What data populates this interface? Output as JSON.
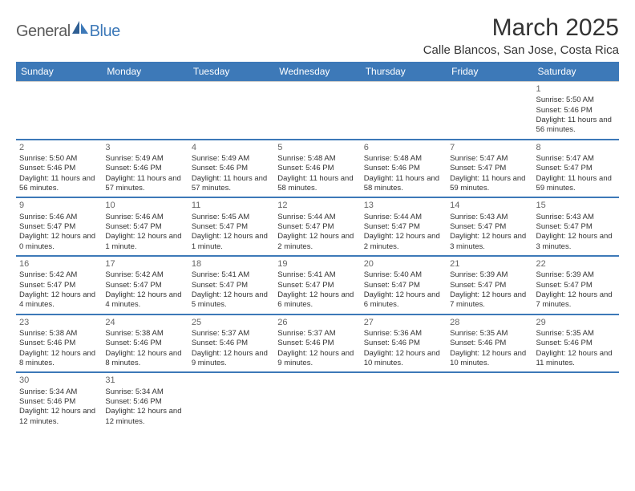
{
  "brand": {
    "part1": "General",
    "part2": "Blue"
  },
  "title": "March 2025",
  "location": "Calle Blancos, San Jose, Costa Rica",
  "colors": {
    "header_bg": "#3d79b8",
    "header_text": "#ffffff",
    "text": "#333333",
    "daynum": "#666666",
    "grid_line": "#c8c8c8",
    "week_sep": "#3d79b8",
    "background": "#ffffff"
  },
  "day_headers": [
    "Sunday",
    "Monday",
    "Tuesday",
    "Wednesday",
    "Thursday",
    "Friday",
    "Saturday"
  ],
  "weeks": [
    [
      null,
      null,
      null,
      null,
      null,
      null,
      {
        "n": "1",
        "sr": "Sunrise: 5:50 AM",
        "ss": "Sunset: 5:46 PM",
        "dl": "Daylight: 11 hours and 56 minutes."
      }
    ],
    [
      {
        "n": "2",
        "sr": "Sunrise: 5:50 AM",
        "ss": "Sunset: 5:46 PM",
        "dl": "Daylight: 11 hours and 56 minutes."
      },
      {
        "n": "3",
        "sr": "Sunrise: 5:49 AM",
        "ss": "Sunset: 5:46 PM",
        "dl": "Daylight: 11 hours and 57 minutes."
      },
      {
        "n": "4",
        "sr": "Sunrise: 5:49 AM",
        "ss": "Sunset: 5:46 PM",
        "dl": "Daylight: 11 hours and 57 minutes."
      },
      {
        "n": "5",
        "sr": "Sunrise: 5:48 AM",
        "ss": "Sunset: 5:46 PM",
        "dl": "Daylight: 11 hours and 58 minutes."
      },
      {
        "n": "6",
        "sr": "Sunrise: 5:48 AM",
        "ss": "Sunset: 5:46 PM",
        "dl": "Daylight: 11 hours and 58 minutes."
      },
      {
        "n": "7",
        "sr": "Sunrise: 5:47 AM",
        "ss": "Sunset: 5:47 PM",
        "dl": "Daylight: 11 hours and 59 minutes."
      },
      {
        "n": "8",
        "sr": "Sunrise: 5:47 AM",
        "ss": "Sunset: 5:47 PM",
        "dl": "Daylight: 11 hours and 59 minutes."
      }
    ],
    [
      {
        "n": "9",
        "sr": "Sunrise: 5:46 AM",
        "ss": "Sunset: 5:47 PM",
        "dl": "Daylight: 12 hours and 0 minutes."
      },
      {
        "n": "10",
        "sr": "Sunrise: 5:46 AM",
        "ss": "Sunset: 5:47 PM",
        "dl": "Daylight: 12 hours and 1 minute."
      },
      {
        "n": "11",
        "sr": "Sunrise: 5:45 AM",
        "ss": "Sunset: 5:47 PM",
        "dl": "Daylight: 12 hours and 1 minute."
      },
      {
        "n": "12",
        "sr": "Sunrise: 5:44 AM",
        "ss": "Sunset: 5:47 PM",
        "dl": "Daylight: 12 hours and 2 minutes."
      },
      {
        "n": "13",
        "sr": "Sunrise: 5:44 AM",
        "ss": "Sunset: 5:47 PM",
        "dl": "Daylight: 12 hours and 2 minutes."
      },
      {
        "n": "14",
        "sr": "Sunrise: 5:43 AM",
        "ss": "Sunset: 5:47 PM",
        "dl": "Daylight: 12 hours and 3 minutes."
      },
      {
        "n": "15",
        "sr": "Sunrise: 5:43 AM",
        "ss": "Sunset: 5:47 PM",
        "dl": "Daylight: 12 hours and 3 minutes."
      }
    ],
    [
      {
        "n": "16",
        "sr": "Sunrise: 5:42 AM",
        "ss": "Sunset: 5:47 PM",
        "dl": "Daylight: 12 hours and 4 minutes."
      },
      {
        "n": "17",
        "sr": "Sunrise: 5:42 AM",
        "ss": "Sunset: 5:47 PM",
        "dl": "Daylight: 12 hours and 4 minutes."
      },
      {
        "n": "18",
        "sr": "Sunrise: 5:41 AM",
        "ss": "Sunset: 5:47 PM",
        "dl": "Daylight: 12 hours and 5 minutes."
      },
      {
        "n": "19",
        "sr": "Sunrise: 5:41 AM",
        "ss": "Sunset: 5:47 PM",
        "dl": "Daylight: 12 hours and 6 minutes."
      },
      {
        "n": "20",
        "sr": "Sunrise: 5:40 AM",
        "ss": "Sunset: 5:47 PM",
        "dl": "Daylight: 12 hours and 6 minutes."
      },
      {
        "n": "21",
        "sr": "Sunrise: 5:39 AM",
        "ss": "Sunset: 5:47 PM",
        "dl": "Daylight: 12 hours and 7 minutes."
      },
      {
        "n": "22",
        "sr": "Sunrise: 5:39 AM",
        "ss": "Sunset: 5:47 PM",
        "dl": "Daylight: 12 hours and 7 minutes."
      }
    ],
    [
      {
        "n": "23",
        "sr": "Sunrise: 5:38 AM",
        "ss": "Sunset: 5:46 PM",
        "dl": "Daylight: 12 hours and 8 minutes."
      },
      {
        "n": "24",
        "sr": "Sunrise: 5:38 AM",
        "ss": "Sunset: 5:46 PM",
        "dl": "Daylight: 12 hours and 8 minutes."
      },
      {
        "n": "25",
        "sr": "Sunrise: 5:37 AM",
        "ss": "Sunset: 5:46 PM",
        "dl": "Daylight: 12 hours and 9 minutes."
      },
      {
        "n": "26",
        "sr": "Sunrise: 5:37 AM",
        "ss": "Sunset: 5:46 PM",
        "dl": "Daylight: 12 hours and 9 minutes."
      },
      {
        "n": "27",
        "sr": "Sunrise: 5:36 AM",
        "ss": "Sunset: 5:46 PM",
        "dl": "Daylight: 12 hours and 10 minutes."
      },
      {
        "n": "28",
        "sr": "Sunrise: 5:35 AM",
        "ss": "Sunset: 5:46 PM",
        "dl": "Daylight: 12 hours and 10 minutes."
      },
      {
        "n": "29",
        "sr": "Sunrise: 5:35 AM",
        "ss": "Sunset: 5:46 PM",
        "dl": "Daylight: 12 hours and 11 minutes."
      }
    ],
    [
      {
        "n": "30",
        "sr": "Sunrise: 5:34 AM",
        "ss": "Sunset: 5:46 PM",
        "dl": "Daylight: 12 hours and 12 minutes."
      },
      {
        "n": "31",
        "sr": "Sunrise: 5:34 AM",
        "ss": "Sunset: 5:46 PM",
        "dl": "Daylight: 12 hours and 12 minutes."
      },
      null,
      null,
      null,
      null,
      null
    ]
  ]
}
